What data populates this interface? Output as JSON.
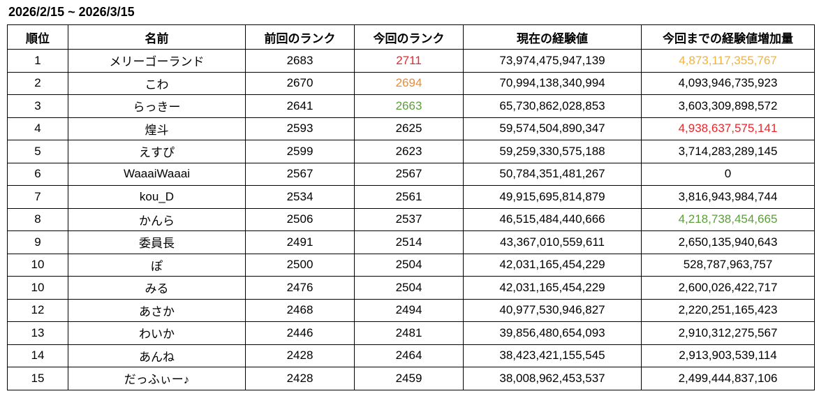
{
  "title": "2026/2/15 ~ 2026/3/15",
  "table": {
    "header": [
      "順位",
      "名前",
      "前回のランク",
      "今回のランク",
      "現在の経験値",
      "今回までの経験値増加量"
    ],
    "rows": [
      [
        "1",
        "メリーゴーランド",
        "2683",
        "2711",
        "73,974,475,947,139",
        "4,873,117,355,767"
      ],
      [
        "2",
        "こわ",
        "2670",
        "2694",
        "70,994,138,340,994",
        "4,093,946,735,923"
      ],
      [
        "3",
        "らっきー",
        "2641",
        "2663",
        "65,730,862,028,853",
        "3,603,309,898,572"
      ],
      [
        "4",
        "煌斗",
        "2593",
        "2625",
        "59,574,504,890,347",
        "4,938,637,575,141"
      ],
      [
        "5",
        "えすぴ",
        "2599",
        "2623",
        "59,259,330,575,188",
        "3,714,283,289,145"
      ],
      [
        "6",
        "WaaaiWaaai",
        "2567",
        "2567",
        "50,784,351,481,267",
        "0"
      ],
      [
        "7",
        "kou_D",
        "2534",
        "2561",
        "49,915,695,814,879",
        "3,816,943,984,744"
      ],
      [
        "8",
        "かんら",
        "2506",
        "2537",
        "46,515,484,440,666",
        "4,218,738,454,665"
      ],
      [
        "9",
        "委員長",
        "2491",
        "2514",
        "43,367,010,559,611",
        "2,650,135,940,643"
      ],
      [
        "10",
        "ぽ",
        "2500",
        "2504",
        "42,031,165,454,229",
        "528,787,963,757"
      ],
      [
        "10",
        "みる",
        "2476",
        "2504",
        "42,031,165,454,229",
        "2,600,026,422,717"
      ],
      [
        "12",
        "あさか",
        "2468",
        "2494",
        "40,977,530,946,827",
        "2,220,251,165,423"
      ],
      [
        "13",
        "わいか",
        "2446",
        "2481",
        "39,856,480,654,093",
        "2,910,312,275,567"
      ],
      [
        "14",
        "あんね",
        "2428",
        "2464",
        "38,423,421,155,545",
        "2,913,903,539,114"
      ],
      [
        "15",
        "だっふぃー♪",
        "2428",
        "2459",
        "38,008,962,453,537",
        "2,499,444,837,106"
      ]
    ]
  }
}
